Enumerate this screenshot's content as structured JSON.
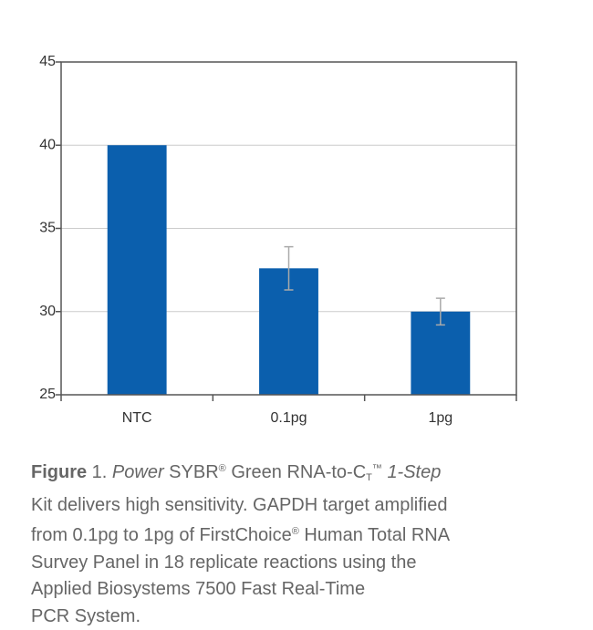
{
  "chart_data": {
    "type": "bar",
    "categories": [
      "NTC",
      "0.1pg",
      "1pg"
    ],
    "values": [
      40,
      32.6,
      30
    ],
    "errors": [
      null,
      1.3,
      0.8
    ],
    "color": "#0b5fad",
    "ylim": [
      25,
      45
    ],
    "yticks": [
      25,
      30,
      35,
      40,
      45
    ],
    "grid": true
  },
  "caption": [
    [
      "Figure",
      " 1. ",
      "Power",
      " SYBR",
      "®",
      " Green RNA-to-C",
      "T",
      "™",
      " ",
      "1-Step"
    ],
    [
      "Kit delivers high sensitivity. GAPDH target amplified"
    ],
    [
      "from 0.1pg to 1pg of FirstChoice",
      "®",
      " Human Total RNA"
    ],
    [
      "Survey Panel in 18 replicate reactions using the"
    ],
    [
      "Applied Biosystems 7500 Fast Real-Time"
    ],
    [
      "PCR System."
    ]
  ]
}
